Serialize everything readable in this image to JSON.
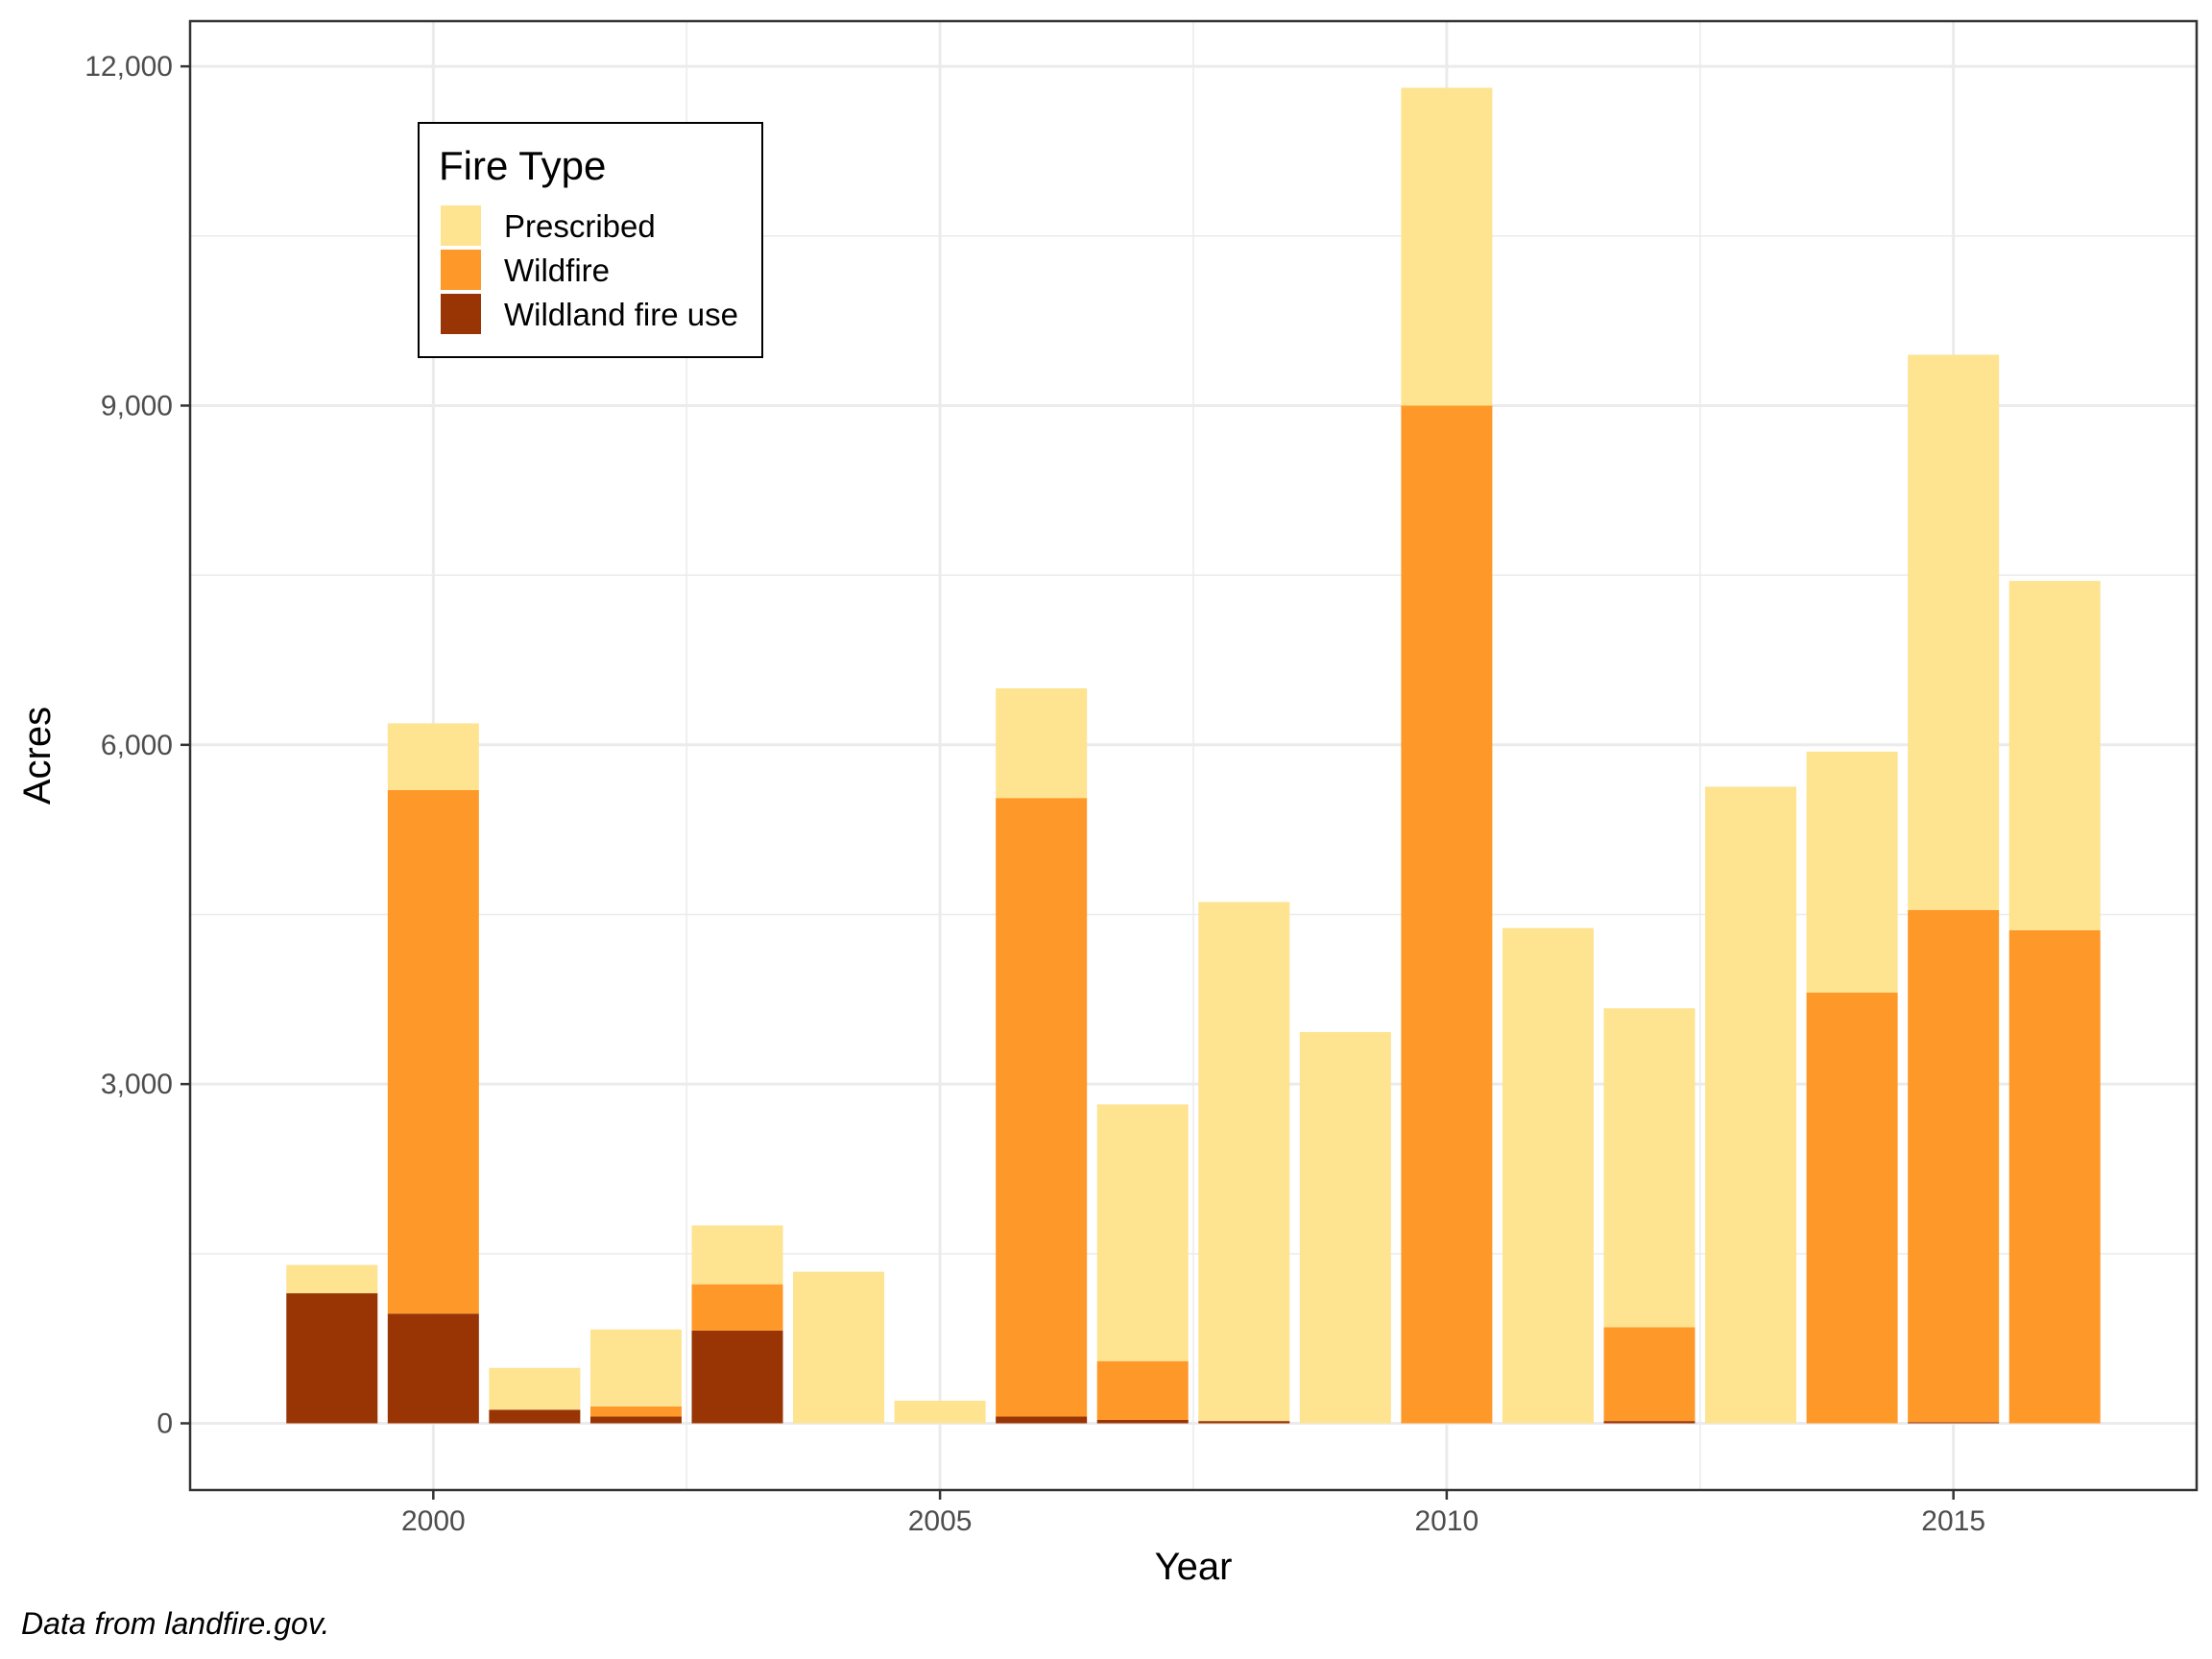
{
  "chart_data": {
    "type": "bar",
    "stacked": true,
    "x": [
      1999,
      2000,
      2001,
      2002,
      2003,
      2004,
      2005,
      2006,
      2007,
      2008,
      2009,
      2010,
      2011,
      2012,
      2013,
      2014,
      2015,
      2016
    ],
    "series": [
      {
        "name": "Wildland fire use",
        "color": "#993404",
        "values": [
          1150,
          970,
          120,
          60,
          820,
          0,
          0,
          60,
          30,
          20,
          0,
          0,
          0,
          20,
          0,
          0,
          10,
          0
        ]
      },
      {
        "name": "Wildfire",
        "color": "#fe9929",
        "values": [
          0,
          4630,
          0,
          90,
          410,
          0,
          0,
          5470,
          520,
          0,
          0,
          9000,
          0,
          830,
          0,
          3810,
          4530,
          4360
        ]
      },
      {
        "name": "Prescribed",
        "color": "#fee391",
        "values": [
          250,
          590,
          370,
          680,
          520,
          1340,
          200,
          970,
          2270,
          4590,
          3460,
          2810,
          4380,
          2820,
          5630,
          2130,
          4910,
          3090
        ]
      }
    ],
    "xlabel": "Year",
    "ylabel": "Acres",
    "xticks": [
      2000,
      2005,
      2010,
      2015
    ],
    "xtick_labels": [
      "2000",
      "2005",
      "2010",
      "2015"
    ],
    "yticks": [
      0,
      3000,
      6000,
      9000,
      12000
    ],
    "ytick_labels": [
      "0",
      "3,000",
      "6,000",
      "9,000",
      "12,000"
    ],
    "xlim": [
      1997.6,
      2017.4
    ],
    "ylim": [
      -590,
      12400
    ],
    "grid": true,
    "legend": {
      "title": "Fire Type",
      "placement": "top-left inside",
      "entries": [
        "Prescribed",
        "Wildfire",
        "Wildland fire use"
      ],
      "colors": [
        "#fee391",
        "#fe9929",
        "#993404"
      ]
    },
    "caption": "Data from landfire.gov."
  }
}
